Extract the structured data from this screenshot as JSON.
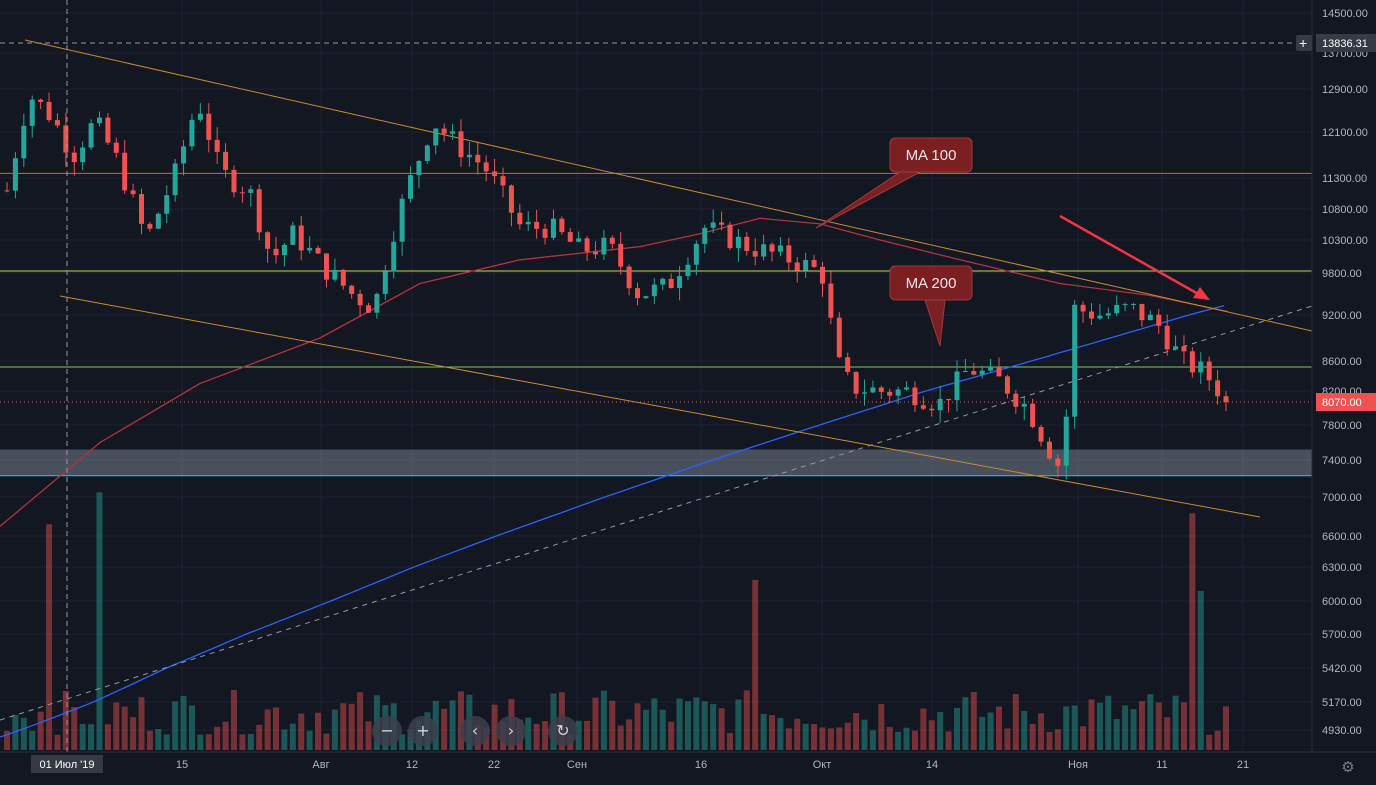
{
  "chart_data": {
    "type": "candlestick",
    "price_axis": {
      "ticks": [
        14500,
        13700,
        12900,
        12100,
        11300,
        10800,
        10300,
        9800,
        9200,
        8600,
        8200,
        7800,
        7400,
        7000,
        6600,
        6300,
        6000,
        5700,
        5420,
        5170,
        4930
      ],
      "tick_labels": [
        "14500.00",
        "13700.00",
        "12900.00",
        "12100.00",
        "11300.00",
        "10800.00",
        "10300.00",
        "9800.00",
        "9200.00",
        "8600.00",
        "8200.00",
        "7800.00",
        "7400.00",
        "7000.00",
        "6600.00",
        "6300.00",
        "6000.00",
        "5700.00",
        "5420.00",
        "5170.00",
        "4930.00"
      ],
      "crosshair_label": "13836.31",
      "current_price_label": "8070.00",
      "current_price": 8070
    },
    "time_axis": {
      "labels": [
        "01 Июл '19",
        "15",
        "Авг",
        "12",
        "22",
        "Сен",
        "16",
        "Окт",
        "14",
        "Ноя",
        "11",
        "21"
      ]
    },
    "horizontal_levels": [
      {
        "price": 11380,
        "color": "#e05a4f"
      },
      {
        "price": 9830,
        "color": "#c6d93f"
      },
      {
        "price": 8520,
        "color": "#6fd24a"
      },
      {
        "price": 7230,
        "color": "#26c6da"
      }
    ],
    "support_zone": {
      "from": 7230,
      "to": 7520,
      "color": "#8a94a6"
    },
    "annotations": [
      {
        "text": "MA 100"
      },
      {
        "text": "MA 200"
      }
    ],
    "colors": {
      "up": "#26a69a",
      "down": "#ef5350",
      "ma100": "#b2333c",
      "ma200": "#2962ff",
      "trend": "#c98a2e",
      "arrow": "#f23645",
      "callout": "#7a1f22"
    },
    "candles_count": 146
  },
  "nav": {
    "zoom_out": "−",
    "zoom_in": "+",
    "scroll_left": "‹",
    "scroll_right": "›",
    "reset": "↻"
  },
  "settings_icon": "gear-icon"
}
